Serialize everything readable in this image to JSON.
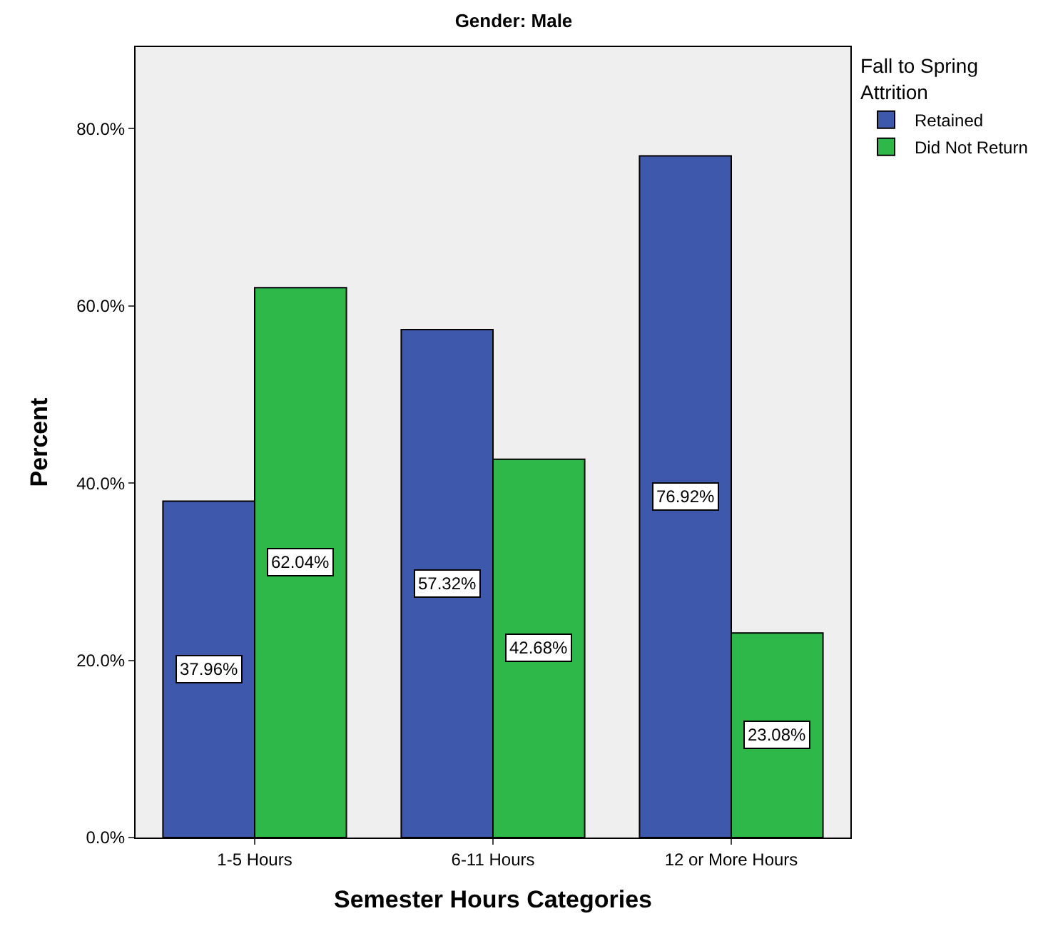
{
  "chart_data": {
    "type": "bar",
    "title": "Gender: Male",
    "xlabel": "Semester Hours Categories",
    "ylabel": "Percent",
    "legend_title": "Fall to Spring\nAttrition",
    "categories": [
      "1-5 Hours",
      "6-11 Hours",
      "12 or More Hours"
    ],
    "series": [
      {
        "name": "Retained",
        "color": "#3e58ac",
        "values": [
          37.96,
          57.32,
          76.92
        ],
        "value_labels": [
          "37.96%",
          "57.32%",
          "76.92%"
        ]
      },
      {
        "name": "Did Not Return",
        "color": "#2fb84a",
        "values": [
          62.04,
          42.68,
          23.08
        ],
        "value_labels": [
          "62.04%",
          "42.68%",
          "23.08%"
        ]
      }
    ],
    "ylim": [
      0,
      89.2
    ],
    "yticks": [
      {
        "value": 0,
        "label": "0.0%"
      },
      {
        "value": 20,
        "label": "20.0%"
      },
      {
        "value": 40,
        "label": "40.0%"
      },
      {
        "value": 60,
        "label": "60.0%"
      },
      {
        "value": 80,
        "label": "80.0%"
      }
    ],
    "grid": false,
    "legend": "top right"
  }
}
